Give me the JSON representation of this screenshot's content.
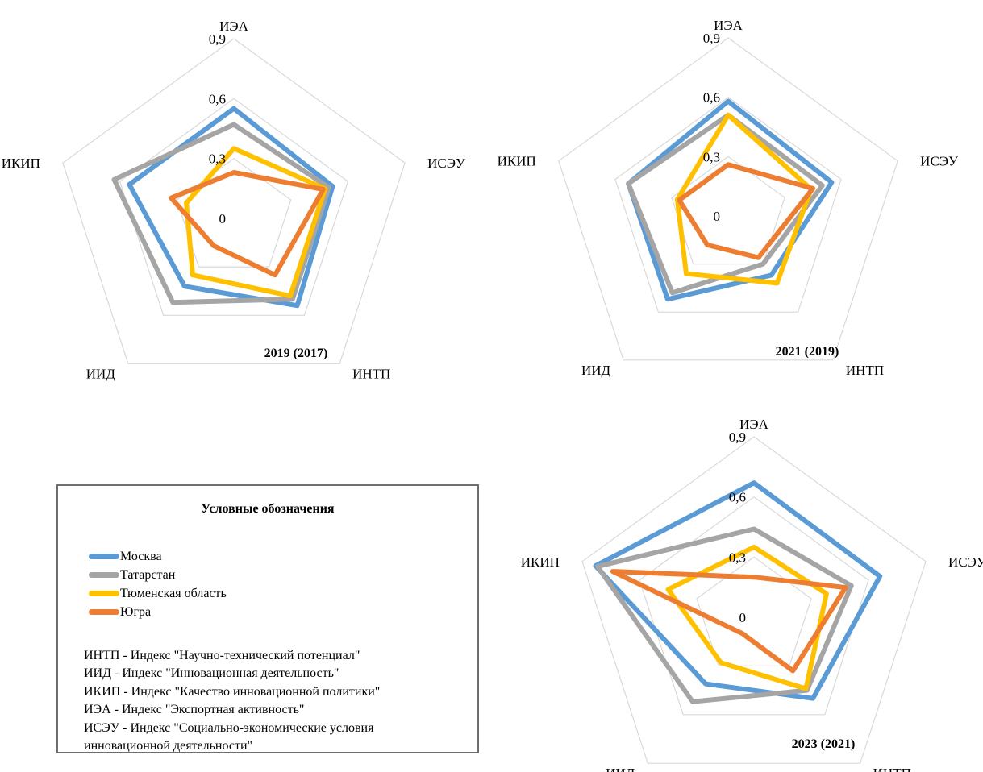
{
  "colors": {
    "grid": "#d9d9d9",
    "moskva": "#5b9bd5",
    "tatarstan": "#a5a5a5",
    "tyumen": "#ffc000",
    "yugra": "#ed7d31"
  },
  "legend": {
    "title": "Условные обозначения",
    "series": [
      "Москва",
      "Татарстан",
      "Тюменская область",
      "Югра"
    ],
    "abbreviations": [
      "ИНТП - Индекс \"Научно-технический потенциал\"",
      "ИИД - Индекс \"Инновационная деятельность\"",
      "ИКИП - Индекс \"Качество инновационной политики\"",
      "ИЭА - Индекс \"Экспортная активность\"",
      "ИСЭУ - Индекс \"Социально-экономические условия",
      "инновационной деятельности\""
    ]
  },
  "chart_data": [
    {
      "type": "radar",
      "title": "2019 (2017)",
      "axes": [
        "ИЭА",
        "ИСЭУ",
        "ИНТП",
        "ИИД",
        "ИКИП"
      ],
      "ticks": [
        "0",
        "0,3",
        "0,6",
        "0,9"
      ],
      "range": [
        0,
        0.9
      ],
      "grid": true,
      "series": [
        {
          "name": "Москва",
          "values": [
            0.55,
            0.52,
            0.54,
            0.42,
            0.55
          ]
        },
        {
          "name": "Татарстан",
          "values": [
            0.47,
            0.5,
            0.5,
            0.52,
            0.63
          ]
        },
        {
          "name": "Тюменская область",
          "values": [
            0.35,
            0.48,
            0.48,
            0.35,
            0.25
          ]
        },
        {
          "name": "Югра",
          "values": [
            0.23,
            0.47,
            0.35,
            0.17,
            0.33
          ]
        }
      ]
    },
    {
      "type": "radar",
      "title": "2021 (2019)",
      "axes": [
        "ИЭА",
        "ИСЭУ",
        "ИНТП",
        "ИИД",
        "ИКИП"
      ],
      "ticks": [
        "0",
        "0,3",
        "0,6",
        "0,9"
      ],
      "range": [
        0,
        0.9
      ],
      "grid": true,
      "series": [
        {
          "name": "Москва",
          "values": [
            0.58,
            0.55,
            0.37,
            0.52,
            0.53
          ]
        },
        {
          "name": "Татарстан",
          "values": [
            0.51,
            0.5,
            0.3,
            0.48,
            0.53
          ]
        },
        {
          "name": "Тюменская область",
          "values": [
            0.51,
            0.44,
            0.42,
            0.36,
            0.27
          ]
        },
        {
          "name": "Югра",
          "values": [
            0.26,
            0.45,
            0.26,
            0.18,
            0.26
          ]
        }
      ]
    },
    {
      "type": "radar",
      "title": "2023 (2021)",
      "axes": [
        "ИЭА",
        "ИСЭУ",
        "ИНТП",
        "ИИД",
        "ИКИП"
      ],
      "ticks": [
        "0",
        "0,3",
        "0,6",
        "0,9"
      ],
      "range": [
        0,
        0.9
      ],
      "grid": true,
      "series": [
        {
          "name": "Москва",
          "values": [
            0.67,
            0.66,
            0.5,
            0.41,
            0.83
          ]
        },
        {
          "name": "Татарстан",
          "values": [
            0.44,
            0.51,
            0.45,
            0.52,
            0.82
          ]
        },
        {
          "name": "Тюменская область",
          "values": [
            0.35,
            0.38,
            0.44,
            0.28,
            0.45
          ]
        },
        {
          "name": "Югра",
          "values": [
            0.2,
            0.48,
            0.33,
            0.1,
            0.74
          ]
        }
      ]
    }
  ]
}
